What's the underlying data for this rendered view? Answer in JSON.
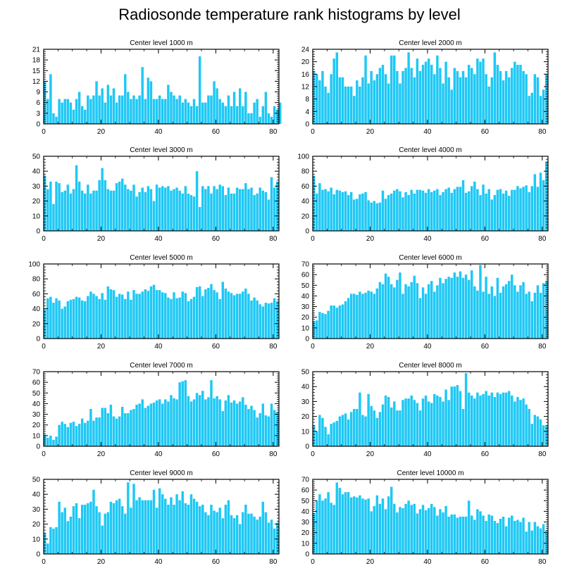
{
  "figure": {
    "title": "Radiosonde temperature rank histograms by level"
  },
  "style": {
    "bar_color": "#1ec8f5",
    "axis_color": "#000000"
  },
  "chart_data": [
    {
      "type": "bar",
      "title": "Center level 1000 m",
      "xlim": [
        0,
        82
      ],
      "ylim": [
        0,
        21
      ],
      "xticks": [
        0,
        20,
        40,
        60,
        80
      ],
      "yticks": [
        0,
        3,
        6,
        9,
        12,
        15,
        18,
        21
      ],
      "values": [
        12,
        7,
        14,
        3,
        2,
        7,
        6,
        7,
        7,
        6,
        4,
        7,
        9,
        5,
        4,
        8,
        7,
        8,
        12,
        8,
        10,
        6,
        11,
        8,
        10,
        6,
        8,
        8,
        14,
        9,
        7,
        8,
        7,
        8,
        16,
        7,
        13,
        12,
        7,
        7,
        8,
        7,
        7,
        11,
        9,
        8,
        7,
        8,
        6,
        7,
        6,
        5,
        7,
        5,
        19,
        6,
        6,
        8,
        8,
        12,
        10,
        7,
        6,
        5,
        8,
        5,
        9,
        5,
        10,
        5,
        9,
        3,
        3,
        6,
        7,
        2,
        5,
        9,
        3,
        2,
        5,
        4,
        6
      ]
    },
    {
      "type": "bar",
      "title": "Center level 2000 m",
      "xlim": [
        0,
        82
      ],
      "ylim": [
        0,
        24
      ],
      "xticks": [
        0,
        20,
        40,
        60,
        80
      ],
      "yticks": [
        0,
        4,
        8,
        12,
        16,
        20,
        24
      ],
      "values": [
        17,
        16,
        14,
        17,
        12,
        10,
        16,
        21,
        23,
        15,
        15,
        12,
        12,
        12,
        9,
        14,
        12,
        15,
        22,
        13,
        17,
        14,
        16,
        18,
        19,
        16,
        13,
        22,
        22,
        17,
        13,
        17,
        18,
        23,
        18,
        15,
        21,
        17,
        19,
        20,
        21,
        19,
        16,
        22,
        18,
        13,
        20,
        15,
        11,
        18,
        17,
        15,
        17,
        15,
        19,
        18,
        16,
        21,
        20,
        21,
        16,
        12,
        15,
        23,
        19,
        17,
        14,
        17,
        15,
        18,
        20,
        19,
        19,
        17,
        16,
        9,
        10,
        16,
        15,
        9,
        11,
        16
      ]
    },
    {
      "type": "bar",
      "title": "Center level 3000 m",
      "xlim": [
        0,
        82
      ],
      "ylim": [
        0,
        50
      ],
      "xticks": [
        0,
        20,
        40,
        60,
        80
      ],
      "yticks": [
        0,
        10,
        20,
        30,
        40,
        50
      ],
      "values": [
        37,
        28,
        33,
        18,
        33,
        32,
        26,
        27,
        31,
        25,
        28,
        44,
        33,
        27,
        25,
        31,
        25,
        27,
        27,
        34,
        42,
        34,
        28,
        27,
        27,
        32,
        33,
        35,
        31,
        28,
        27,
        31,
        23,
        26,
        29,
        26,
        30,
        28,
        20,
        31,
        29,
        30,
        29,
        30,
        27,
        28,
        29,
        27,
        25,
        30,
        25,
        24,
        23,
        40,
        16,
        30,
        28,
        30,
        25,
        30,
        28,
        31,
        30,
        24,
        29,
        25,
        25,
        29,
        28,
        28,
        32,
        28,
        29,
        24,
        25,
        29,
        27,
        26,
        21,
        36,
        29,
        33
      ]
    },
    {
      "type": "bar",
      "title": "Center level 4000 m",
      "xlim": [
        0,
        82
      ],
      "ylim": [
        0,
        100
      ],
      "xticks": [
        0,
        20,
        40,
        60,
        80
      ],
      "yticks": [
        0,
        20,
        40,
        60,
        80,
        100
      ],
      "values": [
        74,
        50,
        64,
        55,
        56,
        53,
        58,
        49,
        55,
        54,
        52,
        53,
        48,
        52,
        42,
        43,
        49,
        50,
        52,
        41,
        38,
        40,
        37,
        38,
        54,
        43,
        48,
        50,
        54,
        56,
        53,
        45,
        52,
        48,
        55,
        50,
        55,
        55,
        54,
        51,
        56,
        52,
        54,
        56,
        48,
        52,
        56,
        58,
        51,
        56,
        59,
        59,
        68,
        51,
        53,
        60,
        66,
        56,
        48,
        62,
        50,
        56,
        42,
        48,
        55,
        56,
        50,
        54,
        47,
        55,
        55,
        60,
        57,
        59,
        61,
        52,
        60,
        76,
        59,
        78,
        68,
        93
      ]
    },
    {
      "type": "bar",
      "title": "Center level 5000 m",
      "xlim": [
        0,
        82
      ],
      "ylim": [
        0,
        100
      ],
      "xticks": [
        0,
        20,
        40,
        60,
        80
      ],
      "yticks": [
        0,
        20,
        40,
        60,
        80,
        100
      ],
      "values": [
        39,
        54,
        56,
        48,
        54,
        51,
        40,
        43,
        50,
        52,
        53,
        56,
        55,
        51,
        50,
        57,
        63,
        60,
        57,
        53,
        61,
        52,
        70,
        66,
        65,
        56,
        60,
        59,
        53,
        63,
        52,
        65,
        60,
        60,
        63,
        66,
        64,
        70,
        72,
        65,
        65,
        62,
        61,
        55,
        53,
        62,
        54,
        55,
        63,
        61,
        50,
        53,
        56,
        69,
        70,
        57,
        66,
        68,
        73,
        65,
        62,
        53,
        76,
        67,
        63,
        61,
        58,
        60,
        60,
        63,
        67,
        60,
        51,
        55,
        51,
        46,
        43,
        48,
        47,
        48,
        54,
        50
      ]
    },
    {
      "type": "bar",
      "title": "Center level 6000 m",
      "xlim": [
        0,
        82
      ],
      "ylim": [
        0,
        70
      ],
      "xticks": [
        0,
        20,
        40,
        60,
        80
      ],
      "yticks": [
        0,
        10,
        20,
        30,
        40,
        50,
        60,
        70
      ],
      "values": [
        16,
        17,
        25,
        24,
        23,
        26,
        31,
        31,
        29,
        31,
        32,
        35,
        38,
        42,
        42,
        41,
        44,
        42,
        43,
        45,
        44,
        42,
        47,
        53,
        51,
        61,
        58,
        51,
        48,
        55,
        62,
        42,
        51,
        49,
        53,
        59,
        52,
        38,
        48,
        42,
        51,
        54,
        44,
        50,
        57,
        52,
        56,
        58,
        57,
        62,
        58,
        63,
        57,
        60,
        55,
        64,
        49,
        45,
        69,
        44,
        58,
        42,
        49,
        40,
        57,
        43,
        49,
        51,
        54,
        60,
        50,
        44,
        50,
        53,
        42,
        44,
        35,
        43,
        50,
        43,
        52,
        54
      ]
    },
    {
      "type": "bar",
      "title": "Center level 7000 m",
      "xlim": [
        0,
        82
      ],
      "ylim": [
        0,
        70
      ],
      "xticks": [
        0,
        20,
        40,
        60,
        80
      ],
      "yticks": [
        0,
        10,
        20,
        30,
        40,
        50,
        60,
        70
      ],
      "values": [
        11,
        8,
        10,
        6,
        9,
        20,
        23,
        21,
        18,
        22,
        23,
        19,
        21,
        26,
        22,
        24,
        35,
        24,
        27,
        27,
        36,
        36,
        31,
        39,
        28,
        26,
        28,
        37,
        31,
        31,
        34,
        35,
        39,
        40,
        44,
        36,
        38,
        40,
        41,
        43,
        44,
        40,
        44,
        42,
        48,
        45,
        44,
        60,
        61,
        62,
        47,
        42,
        44,
        50,
        48,
        52,
        44,
        46,
        62,
        45,
        47,
        44,
        33,
        43,
        48,
        41,
        43,
        40,
        42,
        46,
        39,
        35,
        38,
        34,
        27,
        31,
        40,
        29,
        28,
        40,
        34,
        32
      ]
    },
    {
      "type": "bar",
      "title": "Center level 8000 m",
      "xlim": [
        0,
        82
      ],
      "ylim": [
        0,
        50
      ],
      "xticks": [
        0,
        20,
        40,
        60,
        80
      ],
      "yticks": [
        0,
        10,
        20,
        30,
        40,
        50
      ],
      "values": [
        14,
        10,
        21,
        19,
        13,
        8,
        15,
        16,
        17,
        20,
        21,
        22,
        18,
        23,
        25,
        25,
        36,
        21,
        20,
        35,
        27,
        24,
        19,
        23,
        28,
        34,
        33,
        26,
        30,
        24,
        24,
        31,
        32,
        32,
        34,
        31,
        29,
        24,
        32,
        34,
        30,
        29,
        35,
        34,
        33,
        30,
        38,
        31,
        40,
        40,
        41,
        37,
        25,
        49,
        36,
        34,
        32,
        36,
        34,
        35,
        37,
        34,
        36,
        33,
        36,
        35,
        36,
        36,
        37,
        34,
        30,
        33,
        31,
        32,
        28,
        25,
        15,
        21,
        20,
        18,
        14,
        14
      ]
    },
    {
      "type": "bar",
      "title": "Center level 9000 m",
      "xlim": [
        0,
        82
      ],
      "ylim": [
        0,
        50
      ],
      "xticks": [
        0,
        20,
        40,
        60,
        80
      ],
      "yticks": [
        0,
        10,
        20,
        30,
        40,
        50
      ],
      "values": [
        14,
        7,
        18,
        17,
        18,
        35,
        28,
        31,
        22,
        25,
        32,
        34,
        24,
        33,
        33,
        34,
        35,
        43,
        32,
        28,
        19,
        27,
        28,
        35,
        34,
        36,
        37,
        32,
        27,
        48,
        31,
        47,
        36,
        38,
        36,
        36,
        36,
        36,
        43,
        31,
        44,
        40,
        37,
        33,
        38,
        33,
        40,
        36,
        42,
        34,
        33,
        40,
        37,
        35,
        32,
        33,
        28,
        26,
        33,
        29,
        28,
        31,
        24,
        33,
        36,
        26,
        24,
        26,
        20,
        28,
        33,
        27,
        27,
        25,
        23,
        25,
        35,
        28,
        21,
        23,
        17,
        21
      ]
    },
    {
      "type": "bar",
      "title": "Center level 10000 m",
      "xlim": [
        0,
        82
      ],
      "ylim": [
        0,
        70
      ],
      "xticks": [
        0,
        20,
        40,
        60,
        80
      ],
      "yticks": [
        0,
        10,
        20,
        30,
        40,
        50,
        60,
        70
      ],
      "values": [
        38,
        50,
        56,
        50,
        52,
        58,
        48,
        46,
        67,
        62,
        56,
        58,
        58,
        53,
        54,
        53,
        55,
        52,
        51,
        52,
        40,
        45,
        55,
        47,
        52,
        42,
        54,
        63,
        47,
        39,
        44,
        43,
        47,
        50,
        46,
        47,
        38,
        42,
        46,
        41,
        43,
        47,
        44,
        36,
        42,
        39,
        45,
        35,
        37,
        37,
        34,
        35,
        35,
        35,
        50,
        36,
        32,
        42,
        40,
        36,
        31,
        37,
        36,
        31,
        29,
        33,
        35,
        26,
        34,
        36,
        31,
        32,
        30,
        34,
        21,
        30,
        22,
        30,
        26,
        24,
        28,
        22
      ]
    }
  ]
}
